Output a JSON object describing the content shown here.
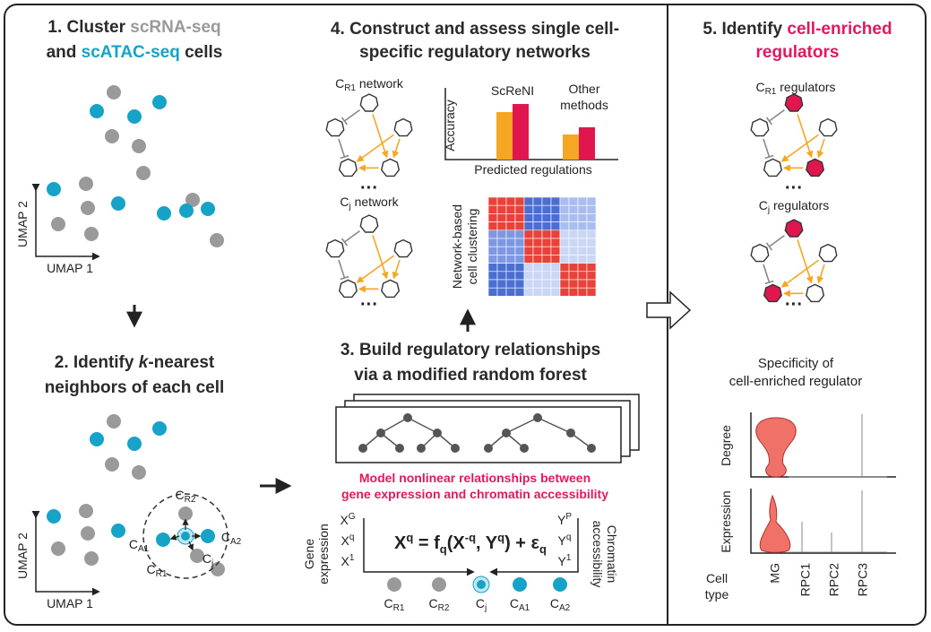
{
  "panel1": {
    "title_a": "1. Cluster ",
    "title_b": "scRNA-seq",
    "title_c": "and ",
    "title_d": "scATAC-seq",
    "title_e": " cells",
    "axis_y": "UMAP 2",
    "axis_x": "UMAP 1"
  },
  "panel2": {
    "title_a": "2. Identify ",
    "title_b": "k",
    "title_c": "-nearest",
    "title_d": "neighbors of each cell",
    "axis_y": "UMAP 2",
    "axis_x": "UMAP 1",
    "labels": [
      {
        "base": "C",
        "sub": "R2"
      },
      {
        "base": "C",
        "sub": "A1"
      },
      {
        "base": "C",
        "sub": "j"
      },
      {
        "base": "C",
        "sub": "A2"
      },
      {
        "base": "C",
        "sub": "R1"
      }
    ]
  },
  "panel3": {
    "title_a": "3. Build regulatory relationships",
    "title_b": "via a modified random forest",
    "note_a": "Model nonlinear relationships between",
    "note_b": "gene expression and chromatin accessibility",
    "left_label_a": "Gene",
    "left_label_b": "expression",
    "right_label_a": "Chromatin",
    "right_label_b": "accessibility",
    "x_terms": [
      {
        "base": "X",
        "sup": "G"
      },
      {
        "base": "X",
        "sup": "q"
      },
      {
        "base": "X",
        "sup": "1"
      }
    ],
    "y_terms": [
      {
        "base": "Y",
        "sup": "P"
      },
      {
        "base": "Y",
        "sup": "q"
      },
      {
        "base": "Y",
        "sup": "1"
      }
    ],
    "formula": [
      "X",
      "q",
      " = f",
      "q",
      "(X",
      "-q",
      ", Y",
      "q",
      ") + ε",
      "q"
    ],
    "cells": [
      {
        "base": "C",
        "sub": "R1"
      },
      {
        "base": "C",
        "sub": "R2"
      },
      {
        "base": "C",
        "sub": "j"
      },
      {
        "base": "C",
        "sub": "A1"
      },
      {
        "base": "C",
        "sub": "A2"
      }
    ]
  },
  "panel4": {
    "title_a": "4. Construct and assess single cell-",
    "title_b": "specific regulatory networks",
    "net1": {
      "base": "C",
      "sub": "R1",
      "rest": " network"
    },
    "net2": {
      "base": "C",
      "sub": "j",
      "rest": " network"
    },
    "ellipsis": "···",
    "bar_label_a": "ScReNI",
    "bar_label_b": "Other",
    "bar_label_c": "methods",
    "y_label": "Accuracy",
    "x_label": "Predicted regulations",
    "heat_label_a": "Network-based",
    "heat_label_b": "cell clustering"
  },
  "panel5": {
    "title_a": "5. Identify ",
    "title_b": "cell-enriched",
    "title_c": "regulators",
    "net1": {
      "base": "C",
      "sub": "R1",
      "rest": " regulators"
    },
    "net2": {
      "base": "C",
      "sub": "j",
      "rest": " regulators"
    },
    "ellipsis": "···",
    "spec_a": "Specificity of",
    "spec_b": "cell-enriched regulator",
    "row_a": "Degree",
    "row_b": "Expression",
    "cell_type_a": "Cell",
    "cell_type_b": "type",
    "types": [
      "MG",
      "RPC1",
      "RPC2",
      "RPC3"
    ]
  }
}
